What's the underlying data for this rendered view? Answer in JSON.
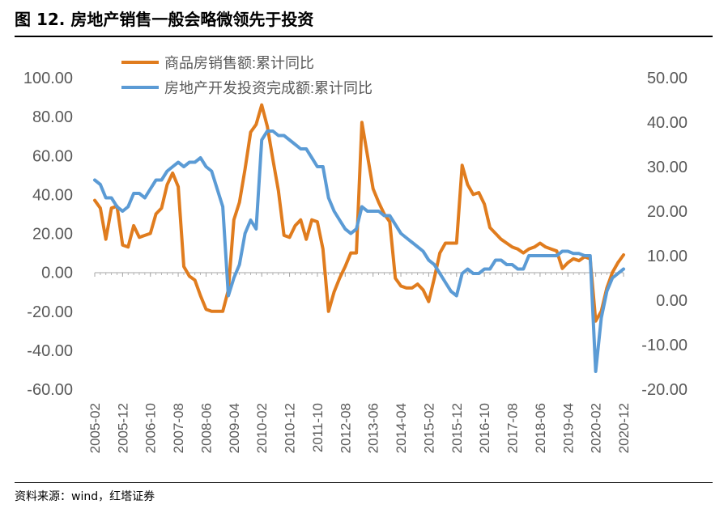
{
  "figure": {
    "title": "图 12. 房地产销售一般会略微领先于投资",
    "source": "资料来源：wind，红塔证券"
  },
  "colors": {
    "sales": "#E07C1E",
    "investment": "#5B9BD5",
    "axis": "#A6A6A6",
    "text": "#595959"
  },
  "chart_data": {
    "type": "line",
    "x_ticks": [
      "2005-02",
      "2005-12",
      "2006-10",
      "2007-08",
      "2008-06",
      "2009-04",
      "2010-02",
      "2010-12",
      "2011-10",
      "2012-08",
      "2013-06",
      "2014-04",
      "2015-02",
      "2015-12",
      "2016-10",
      "2017-08",
      "2018-06",
      "2019-04",
      "2020-02",
      "2020-12"
    ],
    "y_left": {
      "ticks": [
        "100.00",
        "80.00",
        "60.00",
        "40.00",
        "20.00",
        "0.00",
        "-20.00",
        "-40.00",
        "-60.00"
      ],
      "range": [
        -60,
        100
      ]
    },
    "y_right": {
      "ticks": [
        "50.00",
        "40.00",
        "30.00",
        "20.00",
        "10.00",
        "0.00",
        "-10.00",
        "-20.00"
      ],
      "range": [
        -20,
        50
      ]
    },
    "grid": false,
    "legend_position": "top",
    "series": [
      {
        "name": "商品房销售额:累计同比",
        "axis": "left",
        "x": [
          "2005-02",
          "2005-04",
          "2005-06",
          "2005-08",
          "2005-10",
          "2005-12",
          "2006-02",
          "2006-04",
          "2006-06",
          "2006-08",
          "2006-10",
          "2006-12",
          "2007-02",
          "2007-04",
          "2007-06",
          "2007-08",
          "2007-10",
          "2007-12",
          "2008-02",
          "2008-04",
          "2008-06",
          "2008-08",
          "2008-10",
          "2008-12",
          "2009-02",
          "2009-04",
          "2009-06",
          "2009-08",
          "2009-10",
          "2009-12",
          "2010-02",
          "2010-04",
          "2010-06",
          "2010-08",
          "2010-10",
          "2010-12",
          "2011-02",
          "2011-04",
          "2011-06",
          "2011-08",
          "2011-10",
          "2011-12",
          "2012-02",
          "2012-04",
          "2012-06",
          "2012-08",
          "2012-10",
          "2012-12",
          "2013-02",
          "2013-04",
          "2013-06",
          "2013-08",
          "2013-10",
          "2013-12",
          "2014-02",
          "2014-04",
          "2014-06",
          "2014-08",
          "2014-10",
          "2014-12",
          "2015-02",
          "2015-04",
          "2015-06",
          "2015-08",
          "2015-10",
          "2015-12",
          "2016-02",
          "2016-04",
          "2016-06",
          "2016-08",
          "2016-10",
          "2016-12",
          "2017-02",
          "2017-04",
          "2017-06",
          "2017-08",
          "2017-10",
          "2017-12",
          "2018-02",
          "2018-04",
          "2018-06",
          "2018-08",
          "2018-10",
          "2018-12",
          "2019-02",
          "2019-04",
          "2019-06",
          "2019-08",
          "2019-10",
          "2019-12",
          "2020-02",
          "2020-04",
          "2020-06",
          "2020-08",
          "2020-10",
          "2020-12"
        ],
        "values": [
          37,
          33,
          17,
          33,
          34,
          14,
          13,
          24,
          18,
          19,
          20,
          30,
          33,
          45,
          51,
          44,
          3,
          -2,
          -4,
          -12,
          -19,
          -20,
          -20,
          -20,
          -9,
          27,
          36,
          53,
          72,
          76,
          86,
          75,
          58,
          42,
          19,
          18,
          24,
          27,
          17,
          27,
          26,
          12,
          -20,
          -10,
          -3,
          3,
          10,
          10,
          77,
          60,
          43,
          36,
          30,
          26,
          -3,
          -7,
          -8,
          -8,
          -6,
          -9,
          -15,
          -3,
          10,
          15,
          15,
          15,
          55,
          45,
          40,
          41,
          35,
          23,
          20,
          17,
          15,
          13,
          12,
          10,
          12,
          13,
          15,
          13,
          12,
          11,
          2,
          5,
          7,
          6,
          8,
          7,
          -25,
          -20,
          -8,
          0,
          5,
          9
        ]
      },
      {
        "name": "房地产开发投资完成额:累计同比",
        "axis": "right",
        "x": [
          "2005-02",
          "2005-04",
          "2005-06",
          "2005-08",
          "2005-10",
          "2005-12",
          "2006-02",
          "2006-04",
          "2006-06",
          "2006-08",
          "2006-10",
          "2006-12",
          "2007-02",
          "2007-04",
          "2007-06",
          "2007-08",
          "2007-10",
          "2007-12",
          "2008-02",
          "2008-04",
          "2008-06",
          "2008-08",
          "2008-10",
          "2008-12",
          "2009-02",
          "2009-04",
          "2009-06",
          "2009-08",
          "2009-10",
          "2009-12",
          "2010-02",
          "2010-04",
          "2010-06",
          "2010-08",
          "2010-10",
          "2010-12",
          "2011-02",
          "2011-04",
          "2011-06",
          "2011-08",
          "2011-10",
          "2011-12",
          "2012-02",
          "2012-04",
          "2012-06",
          "2012-08",
          "2012-10",
          "2012-12",
          "2013-02",
          "2013-04",
          "2013-06",
          "2013-08",
          "2013-10",
          "2013-12",
          "2014-02",
          "2014-04",
          "2014-06",
          "2014-08",
          "2014-10",
          "2014-12",
          "2015-02",
          "2015-04",
          "2015-06",
          "2015-08",
          "2015-10",
          "2015-12",
          "2016-02",
          "2016-04",
          "2016-06",
          "2016-08",
          "2016-10",
          "2016-12",
          "2017-02",
          "2017-04",
          "2017-06",
          "2017-08",
          "2017-10",
          "2017-12",
          "2018-02",
          "2018-04",
          "2018-06",
          "2018-08",
          "2018-10",
          "2018-12",
          "2019-02",
          "2019-04",
          "2019-06",
          "2019-08",
          "2019-10",
          "2019-12",
          "2020-02",
          "2020-04",
          "2020-06",
          "2020-08",
          "2020-10",
          "2020-12"
        ],
        "values": [
          27,
          26,
          23,
          23,
          21,
          20,
          21,
          24,
          24,
          23,
          25,
          27,
          27,
          29,
          30,
          31,
          30,
          31,
          31,
          32,
          30,
          29,
          25,
          21,
          1,
          5,
          8,
          15,
          18,
          16,
          36,
          38,
          38,
          37,
          37,
          36,
          35,
          34,
          34,
          32,
          30,
          30,
          23,
          20,
          18,
          16,
          15,
          16,
          21,
          20,
          20,
          20,
          19,
          19,
          17,
          15,
          14,
          13,
          12,
          11,
          9,
          8,
          6,
          4,
          2,
          1,
          6,
          7,
          6,
          6,
          7,
          7,
          9,
          9,
          8,
          8,
          7,
          7,
          10,
          10,
          10,
          10,
          10,
          10,
          11,
          11,
          10.5,
          10.5,
          10,
          10,
          -16,
          -4,
          2,
          5,
          6,
          7
        ]
      }
    ]
  }
}
